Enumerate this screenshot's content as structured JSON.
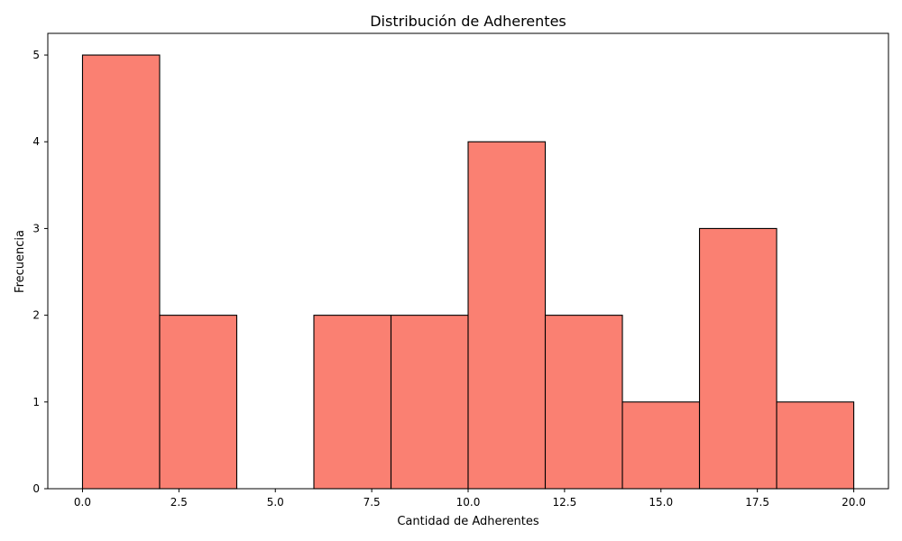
{
  "chart_data": {
    "type": "bar",
    "title": "Distribución de Adherentes",
    "xlabel": "Cantidad de Adherentes",
    "ylabel": "Frecuencia",
    "bins": [
      {
        "start": 0,
        "end": 2,
        "count": 5
      },
      {
        "start": 2,
        "end": 4,
        "count": 2
      },
      {
        "start": 4,
        "end": 6,
        "count": 0
      },
      {
        "start": 6,
        "end": 8,
        "count": 2
      },
      {
        "start": 8,
        "end": 10,
        "count": 2
      },
      {
        "start": 10,
        "end": 12,
        "count": 4
      },
      {
        "start": 12,
        "end": 14,
        "count": 2
      },
      {
        "start": 14,
        "end": 16,
        "count": 1
      },
      {
        "start": 16,
        "end": 18,
        "count": 3
      },
      {
        "start": 18,
        "end": 20,
        "count": 1
      }
    ],
    "xlim": [
      -0.9,
      20.9
    ],
    "ylim": [
      0,
      5.25
    ],
    "xticks": [
      0,
      2.5,
      5,
      7.5,
      10,
      12.5,
      15,
      17.5,
      20
    ],
    "xtick_labels": [
      "0.0",
      "2.5",
      "5.0",
      "7.5",
      "10.0",
      "12.5",
      "15.0",
      "17.5",
      "20.0"
    ],
    "yticks": [
      0,
      1,
      2,
      3,
      4,
      5
    ],
    "ytick_labels": [
      "0",
      "1",
      "2",
      "3",
      "4",
      "5"
    ],
    "bar_color": "#fa8072",
    "edge_color": "#000000",
    "grid": false,
    "legend": "none"
  }
}
